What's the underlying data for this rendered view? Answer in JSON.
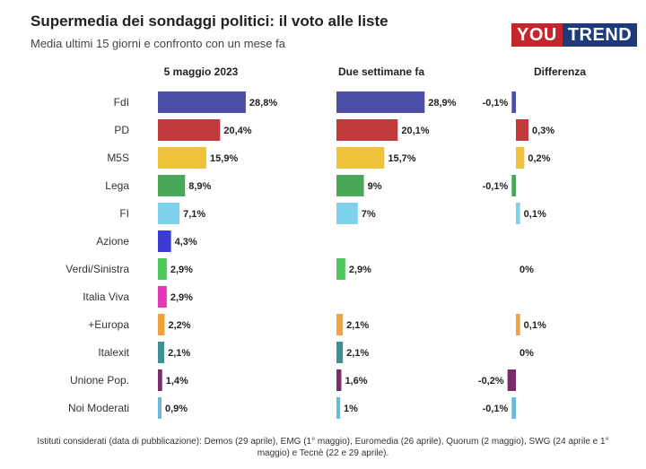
{
  "header": {
    "title": "Supermedia dei sondaggi politici: il voto alle liste",
    "subtitle": "Media ultimi 15 giorni e confronto con un mese fa",
    "logo_you": "YOU",
    "logo_trend": "TREND"
  },
  "footnote": "Istituti considerati (data di pubblicazione): Demos (29 aprile), EMG (1° maggio), Euromedia (26 aprile), Quorum (2 maggio), SWG (24 aprile e 1° maggio) e Tecnè (22 e 29 aprile).",
  "chart_data": {
    "type": "bar",
    "title": "Supermedia dei sondaggi politici: il voto alle liste",
    "columns": [
      "5 maggio 2023",
      "Due settimane fa",
      "Differenza"
    ],
    "categories": [
      "FdI",
      "PD",
      "M5S",
      "Lega",
      "FI",
      "Azione",
      "Verdi/Sinistra",
      "Italia Viva",
      "+Europa",
      "Italexit",
      "Unione Pop.",
      "Noi Moderati"
    ],
    "colors": [
      "#4b4ea6",
      "#c0393b",
      "#f0c23c",
      "#4aa85a",
      "#7fd0ea",
      "#3b3bd6",
      "#4cc95a",
      "#e23ab6",
      "#f2a03a",
      "#3d8f91",
      "#7a2c6b",
      "#6bb8d8"
    ],
    "series": [
      {
        "name": "5 maggio 2023",
        "values": [
          28.8,
          20.4,
          15.9,
          8.9,
          7.1,
          4.3,
          2.9,
          2.9,
          2.2,
          2.1,
          1.4,
          0.9
        ],
        "labels": [
          "28,8%",
          "20,4%",
          "15,9%",
          "8,9%",
          "7,1%",
          "4,3%",
          "2,9%",
          "2,9%",
          "2,2%",
          "2,1%",
          "1,4%",
          "0,9%"
        ]
      },
      {
        "name": "Due settimane fa",
        "values": [
          28.9,
          20.1,
          15.7,
          9,
          7,
          null,
          2.9,
          null,
          2.1,
          2.1,
          1.6,
          1
        ],
        "labels": [
          "28,9%",
          "20,1%",
          "15,7%",
          "9%",
          "7%",
          "",
          "2,9%",
          "",
          "2,1%",
          "2,1%",
          "1,6%",
          "1%"
        ]
      },
      {
        "name": "Differenza",
        "values": [
          -0.1,
          0.3,
          0.2,
          -0.1,
          0.1,
          null,
          0,
          null,
          0.1,
          0,
          -0.2,
          -0.1
        ],
        "labels": [
          "-0,1%",
          "0,3%",
          "0,2%",
          "-0,1%",
          "0,1%",
          "",
          "0%",
          "",
          "0,1%",
          "0%",
          "-0,2%",
          "-0,1%"
        ]
      }
    ],
    "xlim": [
      0,
      30
    ],
    "diff_lim": [
      -0.3,
      0.3
    ]
  }
}
